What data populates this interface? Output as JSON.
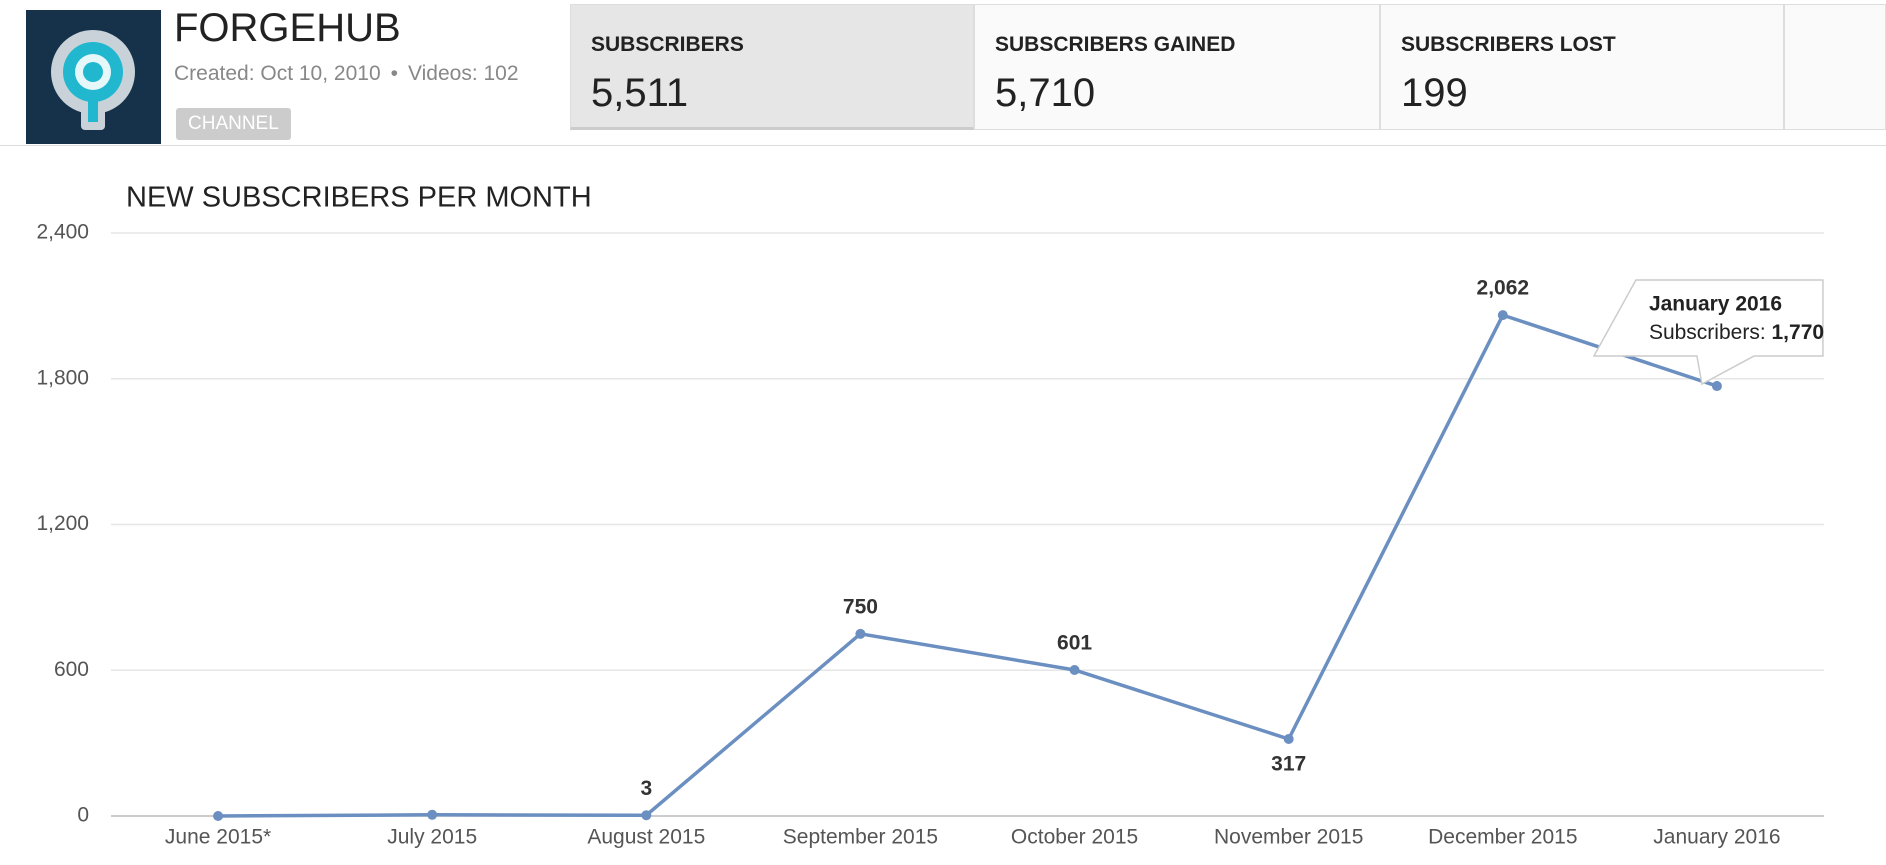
{
  "header": {
    "channel_name": "FORGEHUB",
    "created": "Created: Oct 10, 2010",
    "separator": "•",
    "videos": "Videos: 102",
    "badge": "CHANNEL"
  },
  "stats": [
    {
      "label": "SUBSCRIBERS",
      "value": "5,511"
    },
    {
      "label": "SUBSCRIBERS GAINED",
      "value": "5,710"
    },
    {
      "label": "SUBSCRIBERS LOST",
      "value": "199"
    }
  ],
  "chart_data": {
    "type": "line",
    "title": "NEW SUBSCRIBERS PER MONTH",
    "categories": [
      "June 2015*",
      "July 2015",
      "August 2015",
      "September 2015",
      "October 2015",
      "November 2015",
      "December 2015",
      "January 2016"
    ],
    "series": [
      {
        "name": "Subscribers:",
        "color": "#6a8fc0",
        "values": [
          0,
          5,
          3,
          750,
          601,
          317,
          2062,
          1770
        ],
        "value_labels": [
          null,
          null,
          "3",
          "750",
          "601",
          "317",
          "2,062",
          "1,770"
        ]
      }
    ],
    "ylim": [
      0,
      2400
    ],
    "yticks": [
      0,
      600,
      {
        "value": 1200,
        "label": "1,200"
      },
      {
        "value": 1800,
        "label": "1,800"
      },
      {
        "value": 2400,
        "label": "2,400"
      }
    ],
    "grid": true,
    "tooltip_index": 7
  }
}
